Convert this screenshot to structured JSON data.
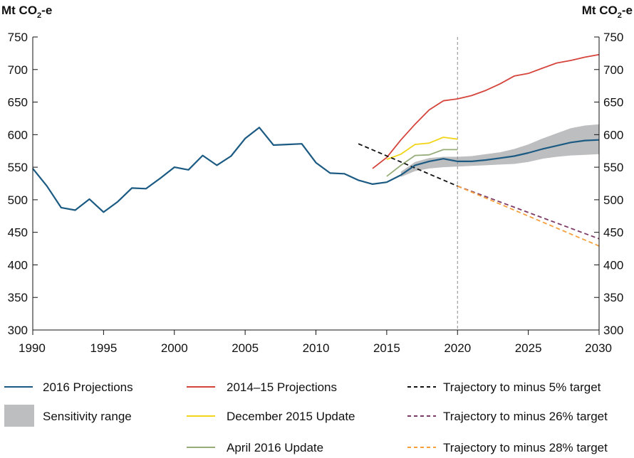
{
  "chart_data": {
    "type": "line",
    "units_left": "Mt CO",
    "units_right": "Mt CO",
    "units_sub": "2",
    "units_suffix": "-e",
    "xlim": [
      1990,
      2030
    ],
    "ylim": [
      300,
      750
    ],
    "x_ticks": [
      "1990",
      "1995",
      "2000",
      "2005",
      "2010",
      "2015",
      "2020",
      "2025",
      "2030"
    ],
    "y_ticks": [
      "300",
      "350",
      "400",
      "450",
      "500",
      "550",
      "600",
      "650",
      "700",
      "750"
    ],
    "divider_x": 2020,
    "sensitivity_range": {
      "name": "Sensitivity range",
      "color": "#bdbec0",
      "x": [
        2016,
        2017,
        2018,
        2019,
        2020,
        2021,
        2022,
        2023,
        2024,
        2025,
        2026,
        2027,
        2028,
        2029,
        2030
      ],
      "lower": [
        535,
        544,
        548,
        550,
        551,
        552,
        553,
        554,
        555,
        558,
        563,
        566,
        568,
        569,
        570
      ],
      "upper": [
        543,
        558,
        564,
        566,
        566,
        567,
        570,
        573,
        578,
        585,
        594,
        602,
        610,
        614,
        616
      ]
    },
    "series": [
      {
        "name": "2014–15 Projections",
        "color": "#d5433b",
        "dash": false,
        "x": [
          2014,
          2015,
          2016,
          2017,
          2018,
          2019,
          2020,
          2021,
          2022,
          2023,
          2024,
          2025,
          2026,
          2027,
          2028,
          2029,
          2030
        ],
        "values": [
          548,
          565,
          592,
          616,
          638,
          652,
          655,
          660,
          668,
          678,
          690,
          694,
          702,
          710,
          714,
          719,
          723
        ]
      },
      {
        "name": "December 2015 Update",
        "color": "#f2d51a",
        "dash": false,
        "x": [
          2015,
          2016,
          2017,
          2018,
          2019,
          2020
        ],
        "values": [
          562,
          570,
          585,
          587,
          596,
          593
        ]
      },
      {
        "name": "April 2016 Update",
        "color": "#96ad79",
        "dash": false,
        "x": [
          2015,
          2016,
          2017,
          2018,
          2019,
          2020
        ],
        "values": [
          536,
          553,
          568,
          569,
          577,
          577
        ]
      },
      {
        "name": "Trajectory to minus 5% target",
        "color": "#111111",
        "dash": true,
        "x": [
          2013,
          2020
        ],
        "values": [
          586,
          521
        ]
      },
      {
        "name": "Trajectory to minus 26% target",
        "color": "#7c3a67",
        "dash": true,
        "x": [
          2020,
          2030
        ],
        "values": [
          521,
          440
        ]
      },
      {
        "name": "Trajectory to minus 28% target",
        "color": "#f5a03c",
        "dash": true,
        "x": [
          2020,
          2030
        ],
        "values": [
          521,
          429
        ]
      },
      {
        "name": "2016 Projections",
        "color": "#1b5a82",
        "dash": false,
        "x": [
          1990,
          1991,
          1992,
          1993,
          1994,
          1995,
          1996,
          1997,
          1998,
          1999,
          2000,
          2001,
          2002,
          2003,
          2004,
          2005,
          2006,
          2007,
          2008,
          2009,
          2010,
          2011,
          2012,
          2013,
          2014,
          2015,
          2016,
          2017,
          2018,
          2019,
          2020,
          2021,
          2022,
          2023,
          2024,
          2025,
          2026,
          2027,
          2028,
          2029,
          2030
        ],
        "values": [
          548,
          521,
          488,
          484,
          501,
          481,
          497,
          518,
          517,
          533,
          550,
          546,
          568,
          553,
          567,
          594,
          611,
          584,
          585,
          586,
          557,
          541,
          540,
          530,
          524,
          527,
          538,
          553,
          559,
          563,
          559,
          559,
          561,
          564,
          567,
          572,
          578,
          583,
          588,
          591,
          592
        ]
      }
    ],
    "legend": [
      {
        "label": "2016 Projections",
        "kind": "line",
        "color": "#1b5a82"
      },
      {
        "label": "2014–15 Projections",
        "kind": "line",
        "color": "#d5433b"
      },
      {
        "label": "Trajectory to minus 5% target",
        "kind": "dash",
        "color": "#111111"
      },
      {
        "label": "Sensitivity range",
        "kind": "box",
        "color": "#bdbec0"
      },
      {
        "label": "December 2015 Update",
        "kind": "line",
        "color": "#f2d51a"
      },
      {
        "label": "Trajectory to minus 26% target",
        "kind": "dash",
        "color": "#7c3a67"
      },
      {
        "label": "April 2016 Update",
        "kind": "line",
        "color": "#96ad79"
      },
      {
        "label": "Trajectory to minus 28% target",
        "kind": "dash",
        "color": "#f5a03c"
      }
    ],
    "grid": false
  }
}
